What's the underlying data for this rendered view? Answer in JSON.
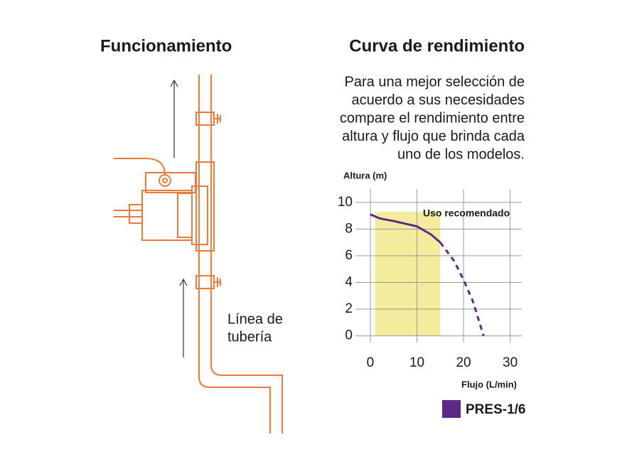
{
  "diagram": {
    "title": "Funcionamiento",
    "pipe_label": [
      "Línea de",
      "tubería"
    ]
  },
  "chart_data": {
    "type": "line",
    "title": "Curva de rendimiento",
    "description": [
      "Para una mejor selección de",
      "acuerdo a sus necesidades",
      "compare el rendimiento entre",
      "altura y flujo que brinda cada",
      "uno de los modelos."
    ],
    "xlabel": "Flujo (L/min)",
    "ylabel": "Altura (m)",
    "x": [
      0,
      2,
      5,
      10,
      13,
      15,
      18,
      20,
      22,
      24.3
    ],
    "series": [
      {
        "name": "PRES-1/6",
        "color": "#5c2a86",
        "values": [
          9.1,
          8.8,
          8.6,
          8.2,
          7.6,
          7.0,
          5.6,
          4.2,
          2.6,
          0
        ]
      }
    ],
    "recommended_range": [
      1,
      15
    ],
    "recommended_label": "Uso recomendado",
    "recommended_color": "#f3ec9c",
    "xlim": [
      -3.2,
      32.5
    ],
    "ylim": [
      -0.5,
      11
    ],
    "xticks": [
      0,
      10,
      20,
      30
    ],
    "yticks": [
      0,
      2,
      4,
      6,
      8,
      10
    ],
    "grid": true
  }
}
